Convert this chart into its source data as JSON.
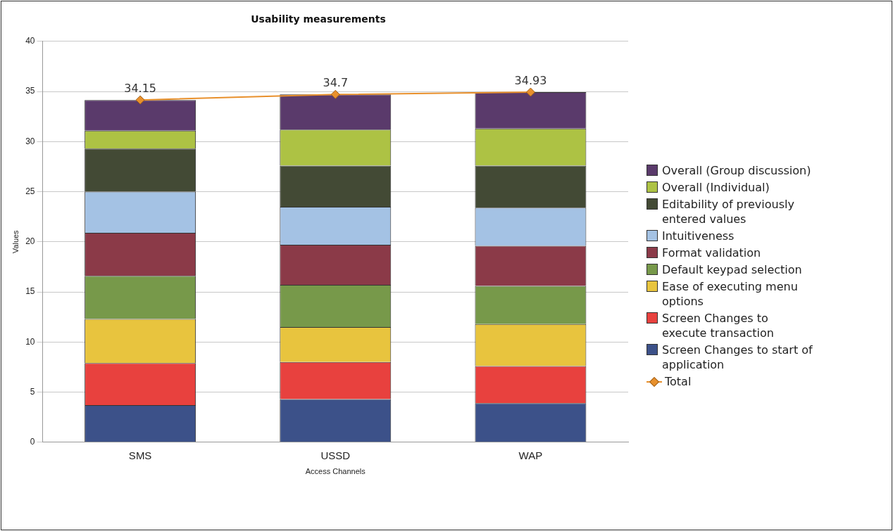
{
  "chart_data": {
    "type": "bar",
    "stacked": true,
    "title": "Usability measurements",
    "xlabel": "Access Channels",
    "ylabel": "Values",
    "categories": [
      "SMS",
      "USSD",
      "WAP"
    ],
    "ylim": [
      0,
      40
    ],
    "yticks": [
      0,
      5,
      10,
      15,
      20,
      25,
      30,
      35,
      40
    ],
    "grid": "y",
    "legend": "right",
    "series": [
      {
        "name": "Screen Changes to start of application",
        "color": "#3c5189",
        "values": [
          3.7,
          4.3,
          3.9
        ]
      },
      {
        "name": "Screen Changes to execute transaction",
        "color": "#e8413e",
        "values": [
          4.2,
          3.7,
          3.7
        ]
      },
      {
        "name": "Ease of executing menu options",
        "color": "#e8c43e",
        "values": [
          4.4,
          3.5,
          4.2
        ]
      },
      {
        "name": "Default keypad selection",
        "color": "#77994a",
        "values": [
          4.3,
          4.2,
          3.8
        ]
      },
      {
        "name": "Format validation",
        "color": "#8b3a48",
        "values": [
          4.3,
          4.0,
          4.0
        ]
      },
      {
        "name": "Intuitiveness",
        "color": "#a4c2e4",
        "values": [
          4.1,
          3.8,
          3.8
        ]
      },
      {
        "name": "Editability of previously entered values",
        "color": "#434a35",
        "values": [
          4.3,
          4.1,
          4.2
        ]
      },
      {
        "name": "Overall (Individual)",
        "color": "#adc244",
        "values": [
          1.8,
          3.6,
          3.7
        ]
      },
      {
        "name": "Overall (Group discussion)",
        "color": "#5a3a6b",
        "values": [
          3.05,
          3.5,
          3.63
        ]
      },
      {
        "name": "Total",
        "type": "line",
        "color": "#e8902c",
        "marker": "diamond",
        "values": [
          34.15,
          34.7,
          34.93
        ],
        "value_labels": [
          "34.15",
          "34.7",
          "34.93"
        ]
      }
    ]
  }
}
